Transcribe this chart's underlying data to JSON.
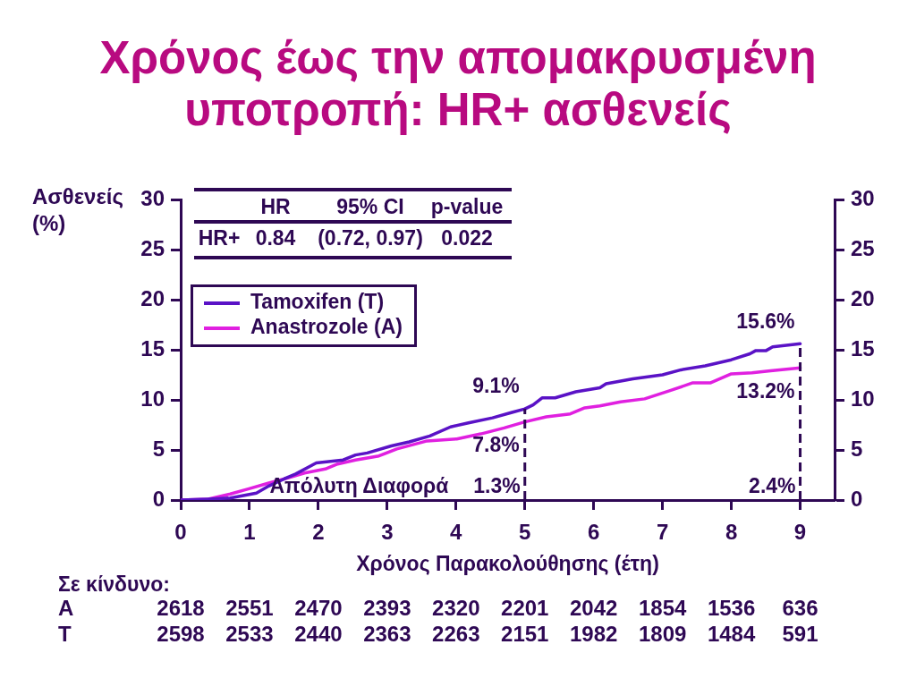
{
  "chart_data": {
    "type": "line",
    "title": "Χρόνος έως την απομακρυσμένη υποτροπή: HR+ ασθενείς",
    "xlabel": "Χρόνος Παρακολούθησης (έτη)",
    "ylabel": "Ασθενείς (%)",
    "series": [
      {
        "name": "Tamoxifen (T)",
        "color": "#5a12c6",
        "x": [
          0,
          0.4,
          0.72,
          1.1,
          1.28,
          1.5,
          1.67,
          1.97,
          2.36,
          2.54,
          2.71,
          3.06,
          3.32,
          3.62,
          3.92,
          4.18,
          4.53,
          4.79,
          5,
          5.12,
          5.25,
          5.44,
          5.74,
          6.09,
          6.18,
          6.57,
          7.0,
          7.27,
          7.62,
          8.0,
          8.27,
          8.35,
          8.5,
          8.6,
          9
        ],
        "values": [
          0,
          0.1,
          0.2,
          0.7,
          1.4,
          2.1,
          2.6,
          3.7,
          4.0,
          4.5,
          4.7,
          5.4,
          5.8,
          6.4,
          7.3,
          7.7,
          8.2,
          8.7,
          9.1,
          9.5,
          10.2,
          10.2,
          10.8,
          11.2,
          11.6,
          12.1,
          12.5,
          13.0,
          13.4,
          14.0,
          14.6,
          14.9,
          14.9,
          15.3,
          15.6
        ]
      },
      {
        "name": "Anastrozole (A)",
        "color": "#e020e0",
        "x": [
          0,
          0.4,
          0.72,
          0.98,
          1.28,
          1.5,
          1.8,
          2.1,
          2.28,
          2.54,
          2.88,
          3.14,
          3.58,
          4.01,
          4.36,
          4.7,
          5,
          5.31,
          5.66,
          5.87,
          6.09,
          6.39,
          6.74,
          7.1,
          7.44,
          7.7,
          8.0,
          8.3,
          8.57,
          9
        ],
        "values": [
          0,
          0.1,
          0.6,
          1.1,
          1.7,
          2.1,
          2.7,
          3.1,
          3.6,
          4.0,
          4.4,
          5.1,
          5.9,
          6.1,
          6.6,
          7.2,
          7.8,
          8.3,
          8.6,
          9.2,
          9.4,
          9.8,
          10.1,
          10.9,
          11.7,
          11.7,
          12.6,
          12.7,
          12.9,
          13.2
        ]
      }
    ],
    "xlim": [
      0,
      9.5
    ],
    "xticks": [
      0,
      1,
      2,
      3,
      4,
      5,
      6,
      7,
      8,
      9
    ],
    "ylim": [
      0,
      30
    ],
    "yticks": [
      0,
      5,
      10,
      15,
      20,
      25,
      30
    ],
    "y2lim": [
      0,
      30
    ],
    "y2ticks": [
      0,
      5,
      10,
      15,
      20,
      25,
      30
    ],
    "legend": "top left",
    "ref_lines": [
      {
        "axis": "x",
        "value": 5,
        "color": "#2e0854",
        "line_style": "dashed"
      },
      {
        "axis": "x",
        "value": 9,
        "color": "#2e0854",
        "line_style": "dashed"
      }
    ],
    "annotations": [
      "HR",
      "95% CI",
      "p-value",
      "HR+",
      "0.84",
      "(0.72, 0.97)",
      "0.022",
      "9.1%",
      "7.8%",
      "15.6%",
      "13.2%",
      "Απόλυτη Διαφορά",
      "1.3%",
      "2.4%",
      "Σε κίνδυνο:",
      "A",
      "2618",
      "2551",
      "2470",
      "2393",
      "2320",
      "2201",
      "2042",
      "1854",
      "1536",
      "636",
      "T",
      "2598",
      "2533",
      "2440",
      "2363",
      "2263",
      "2151",
      "1982",
      "1809",
      "1484",
      "591"
    ]
  }
}
